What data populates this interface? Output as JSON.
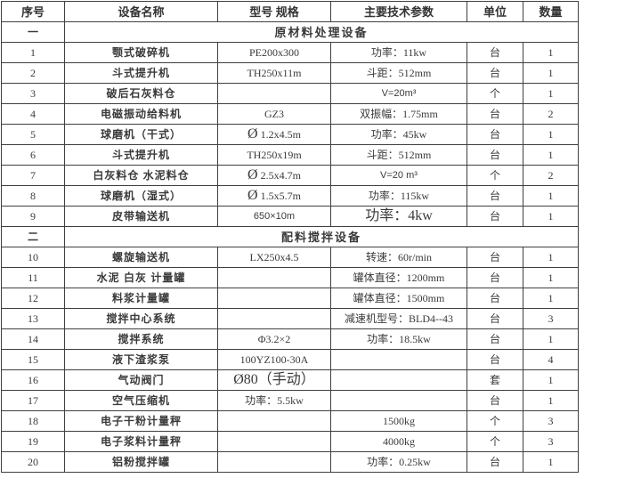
{
  "table": {
    "headers": [
      "序号",
      "设备名称",
      "型号 规格",
      "主要技术参数",
      "单位",
      "数量"
    ],
    "rows": [
      {
        "type": "section",
        "no": "一",
        "title": "原材料处理设备"
      },
      {
        "type": "item",
        "no": "1",
        "name": "颚式破碎机",
        "model": "PE200x300",
        "param": "功率：11kw",
        "unit": "台",
        "qty": "1"
      },
      {
        "type": "item",
        "no": "2",
        "name": "斗式提升机",
        "model": "TH250x11m",
        "param": "斗距：512mm",
        "unit": "台",
        "qty": "1"
      },
      {
        "type": "item",
        "no": "3",
        "name": "破后石灰料仓",
        "model": "",
        "param": "V=20m³",
        "unit": "个",
        "qty": "1",
        "param_class": "sans"
      },
      {
        "type": "item",
        "no": "4",
        "name": "电磁振动给料机",
        "model": "GZ3",
        "param": "双振幅：1.75mm",
        "unit": "台",
        "qty": "2"
      },
      {
        "type": "item",
        "no": "5",
        "name": "球磨机（干式）",
        "model": "Ø 1.2x4.5m",
        "param": "功率：45kw",
        "unit": "台",
        "qty": "1",
        "model_class": "phi"
      },
      {
        "type": "item",
        "no": "6",
        "name": "斗式提升机",
        "model": "TH250x19m",
        "param": "斗距：512mm",
        "unit": "台",
        "qty": "1"
      },
      {
        "type": "item",
        "no": "7",
        "name": "白灰料仓 水泥料仓",
        "model": "Ø 2.5x4.7m",
        "param": "V=20 m³",
        "unit": "个",
        "qty": "2",
        "model_class": "phi",
        "param_class": "sans"
      },
      {
        "type": "item",
        "no": "8",
        "name": "球磨机（湿式）",
        "model": "Ø 1.5x5.7m",
        "param": "功率：115kw",
        "unit": "台",
        "qty": "1",
        "model_class": "phi"
      },
      {
        "type": "item",
        "no": "9",
        "name": "皮带输送机",
        "model": "650×10m",
        "param": "功率：4kw",
        "unit": "台",
        "qty": "1",
        "model_class": "sans",
        "param_class": "large"
      },
      {
        "type": "section",
        "no": "二",
        "title": "配料搅拌设备"
      },
      {
        "type": "item",
        "no": "10",
        "name": "螺旋输送机",
        "model": "LX250x4.5",
        "param": "转速：60r/min",
        "unit": "台",
        "qty": "1"
      },
      {
        "type": "item",
        "no": "11",
        "name": "水泥 白灰 计量罐",
        "model": "",
        "param": "罐体直径：1200mm",
        "unit": "台",
        "qty": "1"
      },
      {
        "type": "item",
        "no": "12",
        "name": "料浆计量罐",
        "model": "",
        "param": "罐体直径：1500mm",
        "unit": "台",
        "qty": "1"
      },
      {
        "type": "item",
        "no": "13",
        "name": "搅拌中心系统",
        "model": "",
        "param": "减速机型号：BLD4--43",
        "unit": "台",
        "qty": "3"
      },
      {
        "type": "item",
        "no": "14",
        "name": "搅拌系统",
        "model": "Φ3.2×2",
        "param": "功率：18.5kw",
        "unit": "台",
        "qty": "1"
      },
      {
        "type": "item",
        "no": "15",
        "name": "液下渣浆泵",
        "model": "100YZ100-30A",
        "param": "",
        "unit": "台",
        "qty": "4"
      },
      {
        "type": "item",
        "no": "16",
        "name": "气动阀门",
        "model": "Ø80（手动）",
        "param": "",
        "unit": "套",
        "qty": "1",
        "model_class": "large"
      },
      {
        "type": "item",
        "no": "17",
        "name": "空气压缩机",
        "model": "功率：5.5kw",
        "param": "",
        "unit": "台",
        "qty": "1"
      },
      {
        "type": "item",
        "no": "18",
        "name": "电子干粉计量秤",
        "model": "",
        "param": "1500kg",
        "unit": "个",
        "qty": "3"
      },
      {
        "type": "item",
        "no": "19",
        "name": "电子浆料计量秤",
        "model": "",
        "param": "4000kg",
        "unit": "个",
        "qty": "3"
      },
      {
        "type": "item",
        "no": "20",
        "name": "铝粉搅拌罐",
        "model": "",
        "param": "功率：0.25kw",
        "unit": "台",
        "qty": "1"
      }
    ]
  }
}
